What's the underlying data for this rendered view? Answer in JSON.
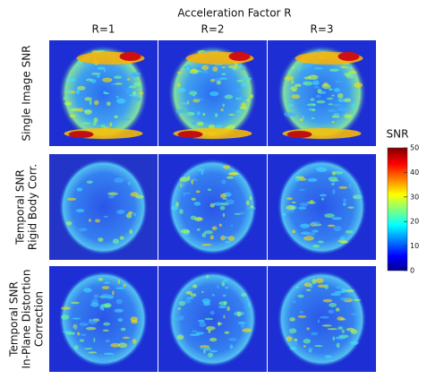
{
  "title": "Acceleration Factor R",
  "columns": [
    "R=1",
    "R=2",
    "R=3"
  ],
  "rows": [
    {
      "label": [
        "Single Image SNR"
      ]
    },
    {
      "label": [
        "Temporal SNR",
        "Rigid Body Corr."
      ]
    },
    {
      "label": [
        "Temporal SNR",
        "In-Plane Distortion",
        "Correction"
      ]
    }
  ],
  "colorbar": {
    "label": "SNR",
    "lim": [
      0,
      50
    ],
    "ticks": [
      0,
      10,
      20,
      30,
      40,
      50
    ]
  }
}
